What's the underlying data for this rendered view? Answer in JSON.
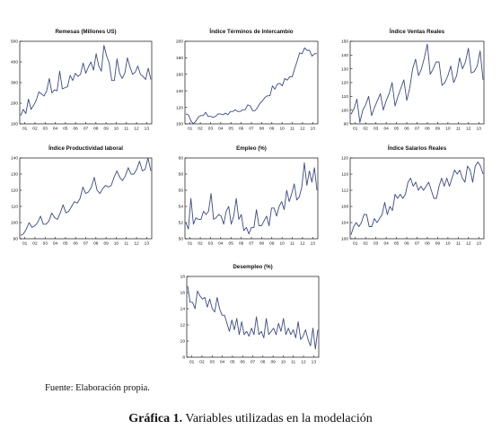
{
  "colors": {
    "series": "#3b4a86",
    "frame": "#111111"
  },
  "source": "Fuente: Elaboración propia.",
  "caption": {
    "label": "Gráfica 1.",
    "text": " Variables utilizadas en la modelación"
  },
  "chart_data": [
    {
      "type": "line",
      "title": "Remesas (Millones US)",
      "xticks": [
        "01",
        "02",
        "03",
        "04",
        "05",
        "06",
        "07",
        "08",
        "09",
        "10",
        "11",
        "12",
        "13"
      ],
      "ylim": [
        100,
        500
      ],
      "yticks": [
        100,
        200,
        300,
        400,
        500
      ],
      "values": [
        140,
        170,
        150,
        220,
        170,
        190,
        215,
        255,
        245,
        235,
        260,
        320,
        250,
        265,
        260,
        355,
        270,
        275,
        280,
        335,
        310,
        345,
        330,
        340,
        395,
        345,
        375,
        400,
        360,
        440,
        380,
        355,
        480,
        430,
        395,
        310,
        310,
        415,
        345,
        320,
        345,
        420,
        375,
        340,
        350,
        380,
        340,
        330,
        315,
        370,
        315
      ]
    },
    {
      "type": "line",
      "title": "Índice Términos de Intercambio",
      "xticks": [
        "01",
        "02",
        "03",
        "04",
        "05",
        "06",
        "07",
        "08",
        "09",
        "10",
        "11",
        "12",
        "13"
      ],
      "ylim": [
        100,
        200
      ],
      "yticks": [
        100,
        120,
        140,
        160,
        180,
        200
      ],
      "values": [
        112,
        111,
        104,
        100,
        103,
        108,
        110,
        110,
        114,
        109,
        109,
        108,
        109,
        112,
        112,
        111,
        113,
        111,
        115,
        115,
        117,
        115,
        115,
        117,
        117,
        123,
        122,
        116,
        116,
        120,
        125,
        128,
        132,
        134,
        134,
        146,
        142,
        148,
        149,
        146,
        155,
        153,
        157,
        157,
        167,
        176,
        186,
        185,
        192,
        189,
        189,
        182,
        185,
        185
      ]
    },
    {
      "type": "line",
      "title": "Índice Ventas Reales",
      "xticks": [
        "01",
        "02",
        "03",
        "04",
        "05",
        "06",
        "07",
        "08",
        "09",
        "10",
        "11",
        "12",
        "13"
      ],
      "ylim": [
        90,
        150
      ],
      "yticks": [
        90,
        100,
        110,
        120,
        130,
        140,
        150
      ],
      "values": [
        97,
        101,
        108,
        91,
        100,
        104,
        110,
        96,
        102,
        107,
        112,
        100,
        107,
        112,
        120,
        103,
        110,
        116,
        122,
        107,
        116,
        130,
        137,
        125,
        130,
        138,
        148,
        126,
        130,
        135,
        135,
        118,
        120,
        125,
        132,
        120,
        125,
        138,
        130,
        135,
        145,
        127,
        128,
        132,
        143,
        122
      ]
    },
    {
      "type": "line",
      "title": "Índice Productividad laboral",
      "xticks": [
        "01",
        "02",
        "03",
        "04",
        "05",
        "06",
        "07",
        "08",
        "09",
        "10",
        "11",
        "12",
        "13"
      ],
      "ylim": [
        90,
        140
      ],
      "yticks": [
        90,
        100,
        110,
        120,
        130,
        140
      ],
      "values": [
        92,
        93,
        96,
        100,
        97,
        98,
        100,
        104,
        99,
        99,
        101,
        106,
        103,
        102,
        106,
        111,
        106,
        107,
        110,
        113,
        112,
        115,
        122,
        118,
        119,
        122,
        128,
        120,
        118,
        121,
        123,
        122,
        123,
        128,
        132,
        128,
        126,
        129,
        134,
        130,
        130,
        133,
        138,
        132,
        133,
        140,
        132
      ]
    },
    {
      "type": "line",
      "title": "Empleo (%)",
      "xticks": [
        "01",
        "02",
        "03",
        "04",
        "05",
        "06",
        "07",
        "08",
        "09",
        "10",
        "11",
        "12",
        "13"
      ],
      "ylim": [
        50,
        60
      ],
      "yticks": [
        50,
        52,
        54,
        56,
        58,
        60
      ],
      "values": [
        52.0,
        51.2,
        55.0,
        51.8,
        52.6,
        52.4,
        52.4,
        53.4,
        53.0,
        53.4,
        55.6,
        52.4,
        52.6,
        53.0,
        52.8,
        51.8,
        53.4,
        54.0,
        51.8,
        52.8,
        55.0,
        52.4,
        53.0,
        51.0,
        51.4,
        50.6,
        51.4,
        51.4,
        53.6,
        51.6,
        51.6,
        52.2,
        52.8,
        51.6,
        53.8,
        53.8,
        52.8,
        54.0,
        54.6,
        53.6,
        56.0,
        54.6,
        55.6,
        56.8,
        54.8,
        55.2,
        56.4,
        59.4,
        56.6,
        58.4,
        57.0,
        58.8,
        56.0
      ]
    },
    {
      "type": "line",
      "title": "Índice Salarios Reales",
      "xticks": [
        "01",
        "02",
        "03",
        "04",
        "05",
        "06",
        "07",
        "08",
        "09",
        "10",
        "11",
        "12",
        "13"
      ],
      "ylim": [
        100,
        120
      ],
      "yticks": [
        100,
        104,
        108,
        112,
        116,
        120
      ],
      "values": [
        101,
        103,
        104,
        103,
        104,
        106,
        106,
        103,
        103,
        105,
        104,
        105,
        106,
        109,
        106,
        108,
        107,
        111,
        110,
        111,
        110,
        111,
        114,
        115,
        113,
        114,
        112,
        113,
        112,
        113,
        114,
        112,
        110,
        110,
        113,
        115,
        113,
        115,
        113,
        115,
        117,
        116,
        117,
        115,
        114,
        118,
        117,
        114,
        118,
        119,
        118,
        116
      ]
    },
    {
      "type": "line",
      "title": "Desempleo (%)",
      "xticks": [
        "01",
        "02",
        "03",
        "04",
        "05",
        "06",
        "07",
        "08",
        "09",
        "10",
        "11",
        "12",
        "13"
      ],
      "ylim": [
        8,
        18
      ],
      "yticks": [
        8,
        10,
        12,
        14,
        16,
        18
      ],
      "values": [
        16.8,
        14.8,
        14.8,
        14.0,
        16.2,
        15.6,
        15.2,
        15.4,
        14.2,
        15.2,
        14.0,
        13.6,
        15.4,
        14.0,
        13.2,
        13.2,
        12.2,
        11.2,
        12.6,
        11.4,
        12.8,
        10.8,
        12.4,
        10.8,
        11.2,
        10.6,
        11.6,
        10.8,
        13.0,
        10.8,
        11.2,
        10.4,
        12.8,
        10.8,
        11.2,
        11.6,
        10.8,
        12.2,
        11.2,
        12.8,
        10.8,
        11.6,
        10.8,
        11.4,
        10.4,
        12.4,
        10.2,
        10.6,
        11.4,
        10.2,
        9.4,
        11.6,
        9.0,
        11.4
      ]
    }
  ]
}
